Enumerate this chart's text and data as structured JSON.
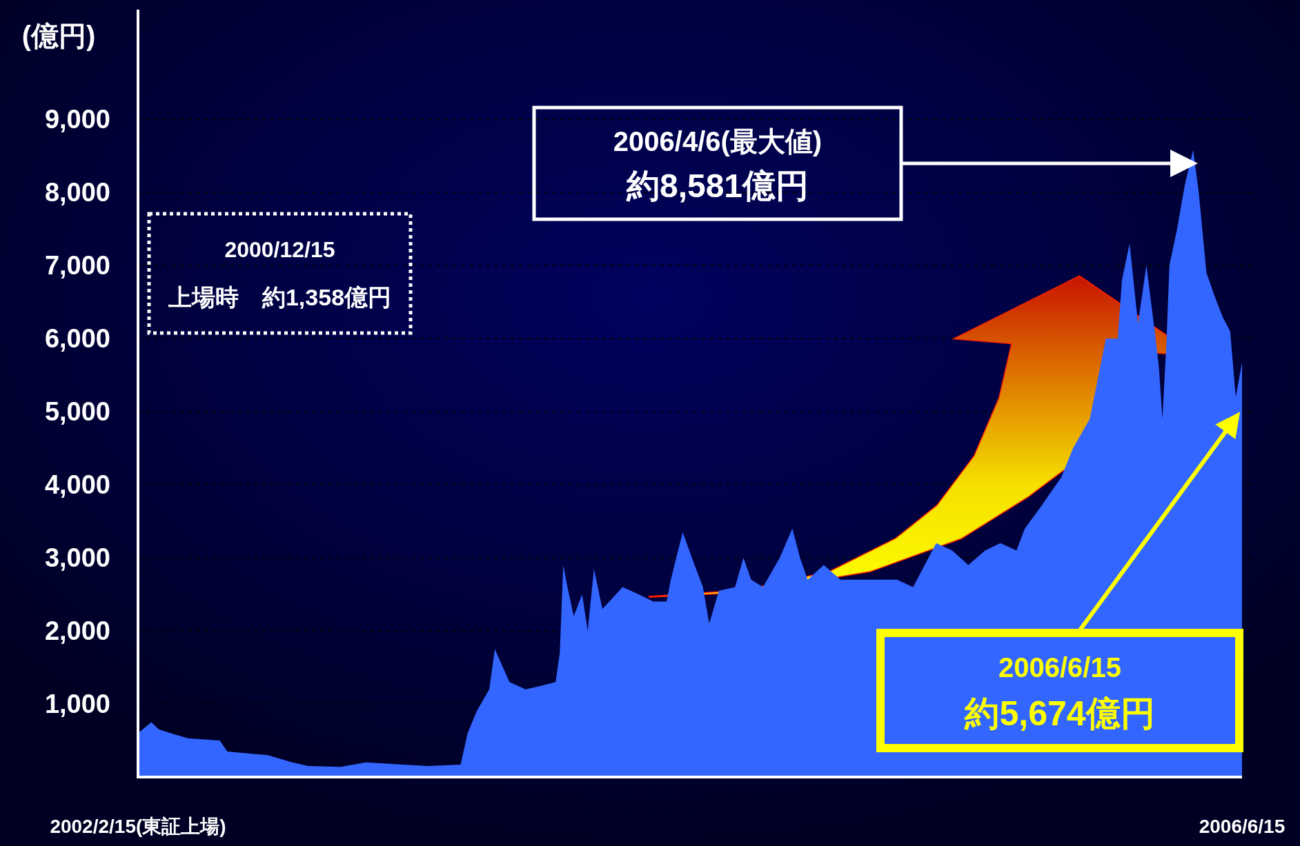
{
  "chart_data": {
    "type": "area",
    "ylabel": "(億円)",
    "xlim": [
      "2002-02-15",
      "2006-06-15"
    ],
    "xticks": [
      {
        "value": "2002-02-15",
        "label": "2002/2/15(東証上場)"
      },
      {
        "value": "2006-06-15",
        "label": "2006/6/15"
      }
    ],
    "ylim": [
      0,
      10500
    ],
    "yticks": [
      {
        "value": 1000,
        "label": "1,000"
      },
      {
        "value": 2000,
        "label": "2,000"
      },
      {
        "value": 3000,
        "label": "3,000"
      },
      {
        "value": 4000,
        "label": "4,000"
      },
      {
        "value": 5000,
        "label": "5,000"
      },
      {
        "value": 6000,
        "label": "6,000"
      },
      {
        "value": 7000,
        "label": "7,000"
      },
      {
        "value": 8000,
        "label": "8,000"
      },
      {
        "value": 9000,
        "label": "9,000"
      }
    ],
    "grid": "y",
    "x": [
      "2002-02-15",
      "2002-03-06",
      "2002-03-17",
      "2002-04-27",
      "2002-06-12",
      "2002-06-23",
      "2002-08-20",
      "2002-09-24",
      "2002-10-17",
      "2002-12-02",
      "2003-01-07",
      "2003-03-03",
      "2003-04-07",
      "2003-05-23",
      "2003-06-02",
      "2003-06-15",
      "2003-07-03",
      "2003-07-11",
      "2003-08-01",
      "2003-08-24",
      "2003-09-16",
      "2003-10-06",
      "2003-10-12",
      "2003-10-17",
      "2003-10-23",
      "2003-11-01",
      "2003-11-13",
      "2003-11-21",
      "2003-11-30",
      "2003-12-12",
      "2004-01-10",
      "2004-02-02",
      "2004-02-23",
      "2004-03-13",
      "2004-03-19",
      "2004-04-05",
      "2004-04-22",
      "2004-05-04",
      "2004-05-13",
      "2004-05-27",
      "2004-06-19",
      "2004-07-01",
      "2004-07-12",
      "2004-07-29",
      "2004-08-22",
      "2004-09-09",
      "2004-09-20",
      "2004-10-01",
      "2004-10-24",
      "2004-11-17",
      "2004-12-21",
      "2005-01-14",
      "2005-02-06",
      "2005-03-01",
      "2005-03-12",
      "2005-04-03",
      "2005-04-26",
      "2005-05-19",
      "2005-06-12",
      "2005-07-04",
      "2005-07-27",
      "2005-08-08",
      "2005-08-31",
      "2005-09-29",
      "2005-10-16",
      "2005-11-09",
      "2005-12-02",
      "2005-12-19",
      "2005-12-25",
      "2006-01-05",
      "2006-01-17",
      "2006-01-29",
      "2006-02-10",
      "2006-02-16",
      "2006-02-21",
      "2006-02-27",
      "2006-03-03",
      "2006-03-14",
      "2006-03-25",
      "2006-04-06",
      "2006-04-14",
      "2006-04-25",
      "2006-05-06",
      "2006-05-18",
      "2006-05-29",
      "2006-06-06",
      "2006-06-15"
    ],
    "series": [
      {
        "color": "#3366ff",
        "values": [
          600,
          750,
          650,
          530,
          500,
          350,
          300,
          200,
          150,
          140,
          200,
          170,
          150,
          170,
          600,
          900,
          1200,
          1750,
          1300,
          1200,
          1250,
          1300,
          1700,
          2900,
          2600,
          2200,
          2500,
          2000,
          2850,
          2300,
          2600,
          2500,
          2400,
          2400,
          2700,
          3350,
          2900,
          2600,
          2100,
          2550,
          2600,
          3000,
          2700,
          2600,
          3000,
          3400,
          3000,
          2700,
          2900,
          2700,
          2700,
          2700,
          2700,
          2600,
          2800,
          3200,
          3100,
          2900,
          3100,
          3200,
          3100,
          3400,
          3700,
          4100,
          4500,
          4900,
          6000,
          6000,
          6800,
          7300,
          6200,
          7000,
          6100,
          5600,
          4900,
          6000,
          7000,
          7500,
          8100,
          8581,
          8000,
          6900,
          6600,
          6300,
          6100,
          5200,
          5674
        ]
      }
    ],
    "annotations": [
      "2000/12/15\n上場時　約1,358億円",
      "2006/4/6(最大値)\n約8,581億円",
      "2006/6/15\n約5,674億円"
    ]
  }
}
